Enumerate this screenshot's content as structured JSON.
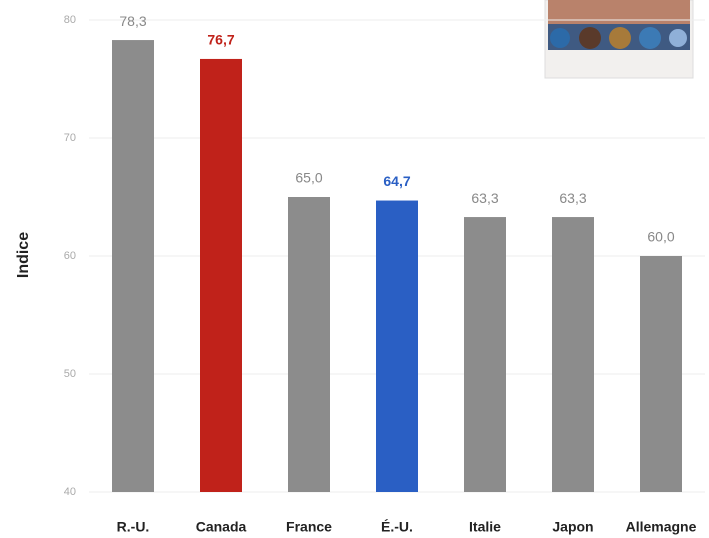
{
  "chart_data": {
    "type": "bar",
    "ylabel": "Indice",
    "categories": [
      "R.-U.",
      "Canada",
      "France",
      "É.-U.",
      "Italie",
      "Japon",
      "Allemagne"
    ],
    "values": [
      78.3,
      76.7,
      65.0,
      64.7,
      63.3,
      63.3,
      60.0
    ],
    "value_labels": [
      "78,3",
      "76,7",
      "65,0",
      "64,7",
      "63,3",
      "63,3",
      "60,0"
    ],
    "colors": [
      "#8c8c8c",
      "#c0221a",
      "#8c8c8c",
      "#2a5fc4",
      "#8c8c8c",
      "#8c8c8c",
      "#8c8c8c"
    ],
    "value_label_colors": [
      "#888888",
      "#c0221a",
      "#888888",
      "#2a5fc4",
      "#888888",
      "#888888",
      "#888888"
    ],
    "ylim": [
      40,
      80
    ],
    "yticks": [
      40,
      50,
      60,
      70,
      80
    ],
    "grid": true
  }
}
